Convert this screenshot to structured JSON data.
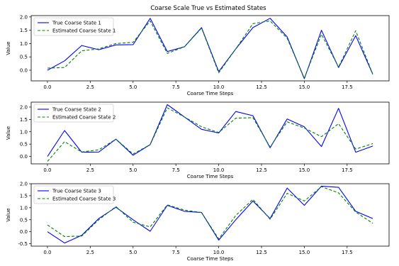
{
  "title": "Coarse Scale True vs Estimated States",
  "colors": {
    "true_line": "#0000ff",
    "estimated_line": "#008000"
  },
  "chart_data": [
    {
      "type": "line",
      "xlabel": "Coarse Time Steps",
      "ylabel": "Value",
      "xlim": [
        -0.95,
        19.95
      ],
      "ylim": [
        -0.4,
        2.05
      ],
      "xticks": [
        0,
        2.5,
        5,
        7.5,
        10,
        12.5,
        15,
        17.5
      ],
      "xtick_labels": [
        "0.0",
        "2.5",
        "5.0",
        "7.5",
        "10.0",
        "12.5",
        "15.0",
        "17.5"
      ],
      "yticks": [
        0,
        0.5,
        1,
        1.5,
        2
      ],
      "ytick_labels": [
        "0.0",
        "0.5",
        "1.0",
        "1.5",
        "2.0"
      ],
      "legend": "top-left",
      "grid": false,
      "x": [
        0,
        1,
        2,
        3,
        4,
        5,
        6,
        7,
        8,
        9,
        10,
        11,
        12,
        13,
        14,
        15,
        16,
        17,
        18,
        19
      ],
      "series": [
        {
          "name": "True Coarse State 1",
          "style": "solid",
          "values": [
            0.0,
            0.35,
            0.93,
            0.77,
            0.95,
            0.96,
            1.95,
            0.7,
            0.88,
            1.6,
            -0.05,
            0.8,
            1.6,
            1.95,
            1.25,
            -0.32,
            1.5,
            0.1,
            1.3,
            -0.15
          ]
        },
        {
          "name": "Estimated Coarse State 1",
          "style": "dashed",
          "values": [
            0.08,
            0.1,
            0.73,
            0.8,
            1.0,
            1.05,
            1.85,
            0.63,
            0.88,
            1.58,
            -0.1,
            0.8,
            1.75,
            1.85,
            1.2,
            -0.3,
            1.35,
            0.12,
            1.48,
            -0.15
          ]
        }
      ]
    },
    {
      "type": "line",
      "xlabel": "Coarse Time Steps",
      "ylabel": "Value",
      "xlim": [
        -0.95,
        19.95
      ],
      "ylim": [
        -0.3,
        2.2
      ],
      "xticks": [
        0,
        2.5,
        5,
        7.5,
        10,
        12.5,
        15,
        17.5
      ],
      "xtick_labels": [
        "0.0",
        "2.5",
        "5.0",
        "7.5",
        "10.0",
        "12.5",
        "15.0",
        "17.5"
      ],
      "yticks": [
        0,
        0.5,
        1,
        1.5,
        2
      ],
      "ytick_labels": [
        "0.0",
        "0.5",
        "1.0",
        "1.5",
        "2.0"
      ],
      "legend": "top-left",
      "grid": false,
      "x": [
        0,
        1,
        2,
        3,
        4,
        5,
        6,
        7,
        8,
        9,
        10,
        11,
        12,
        13,
        14,
        15,
        16,
        17,
        18,
        19
      ],
      "series": [
        {
          "name": "True Coarse State 2",
          "style": "solid",
          "values": [
            0.0,
            1.05,
            0.17,
            0.18,
            0.7,
            0.05,
            0.48,
            2.1,
            1.6,
            1.1,
            0.95,
            1.82,
            1.65,
            0.35,
            1.52,
            1.2,
            0.4,
            1.95,
            0.17,
            0.42
          ]
        },
        {
          "name": "Estimated Coarse State 2",
          "style": "dashed",
          "values": [
            -0.2,
            0.6,
            0.18,
            0.27,
            0.7,
            0.1,
            0.48,
            1.97,
            1.6,
            1.2,
            0.97,
            1.55,
            1.57,
            0.38,
            1.4,
            1.15,
            0.8,
            1.33,
            0.3,
            0.52
          ]
        }
      ]
    },
    {
      "type": "line",
      "xlabel": "Coarse Time Steps",
      "ylabel": "Value",
      "xlim": [
        -0.95,
        19.95
      ],
      "ylim": [
        -0.6,
        2.0
      ],
      "xticks": [
        0,
        2.5,
        5,
        7.5,
        10,
        12.5,
        15,
        17.5
      ],
      "xtick_labels": [
        "0.0",
        "2.5",
        "5.0",
        "7.5",
        "10.0",
        "12.5",
        "15.0",
        "17.5"
      ],
      "yticks": [
        -0.5,
        0,
        0.5,
        1,
        1.5,
        2
      ],
      "ytick_labels": [
        "-0.5",
        "0.0",
        "0.5",
        "1.0",
        "1.5",
        "2.0"
      ],
      "legend": "top-left",
      "grid": false,
      "x": [
        0,
        1,
        2,
        3,
        4,
        5,
        6,
        7,
        8,
        9,
        10,
        11,
        12,
        13,
        14,
        15,
        16,
        17,
        18,
        19
      ],
      "series": [
        {
          "name": "True Coarse State 3",
          "style": "solid",
          "values": [
            0.0,
            -0.47,
            -0.15,
            0.55,
            1.02,
            0.5,
            0.02,
            1.1,
            0.85,
            0.8,
            -0.35,
            0.5,
            1.28,
            0.55,
            1.82,
            1.1,
            1.9,
            1.85,
            0.85,
            0.55
          ]
        },
        {
          "name": "Estimated Coarse State 3",
          "style": "dashed",
          "values": [
            0.28,
            -0.2,
            -0.18,
            0.5,
            1.05,
            0.4,
            0.2,
            1.12,
            0.9,
            0.8,
            -0.3,
            0.68,
            1.35,
            0.52,
            1.6,
            1.28,
            1.88,
            1.62,
            0.82,
            0.35
          ]
        }
      ]
    }
  ]
}
